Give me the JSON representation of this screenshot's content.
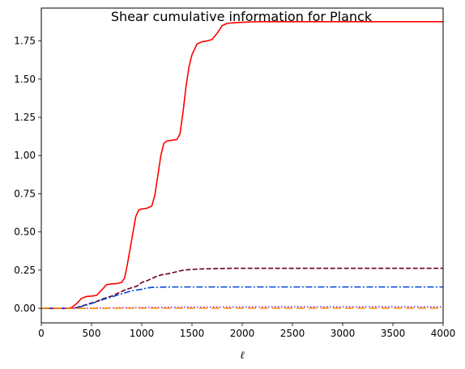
{
  "chart_data": {
    "type": "line",
    "title": "Shear cumulative information for Planck",
    "xlabel": "ℓ",
    "ylabel": "",
    "xlim": [
      0,
      4000
    ],
    "ylim": [
      -0.095,
      1.965
    ],
    "xticks": [
      0,
      500,
      1000,
      1500,
      2000,
      2500,
      3000,
      3500,
      4000
    ],
    "xtick_labels": [
      "0",
      "500",
      "1000",
      "1500",
      "2000",
      "2500",
      "3000",
      "3500",
      "4000"
    ],
    "yticks": [
      0.0,
      0.25,
      0.5,
      0.75,
      1.0,
      1.25,
      1.5,
      1.75
    ],
    "ytick_labels": [
      "0.00",
      "0.25",
      "0.50",
      "0.75",
      "1.00",
      "1.25",
      "1.50",
      "1.75"
    ],
    "grid": false,
    "legend": "none",
    "series": [
      {
        "color": "#ff0000",
        "style": "solid",
        "x": [
          0,
          250,
          300,
          350,
          400,
          450,
          500,
          550,
          600,
          650,
          700,
          750,
          800,
          830,
          860,
          900,
          940,
          970,
          1000,
          1050,
          1100,
          1130,
          1160,
          1190,
          1220,
          1250,
          1300,
          1350,
          1380,
          1410,
          1440,
          1470,
          1500,
          1550,
          1600,
          1650,
          1700,
          1750,
          1800,
          1850,
          1900,
          2000,
          2100,
          2200,
          2500,
          3000,
          3500,
          4000
        ],
        "y": [
          0.0,
          0.0,
          0.005,
          0.03,
          0.065,
          0.078,
          0.08,
          0.085,
          0.12,
          0.155,
          0.16,
          0.162,
          0.17,
          0.2,
          0.3,
          0.45,
          0.6,
          0.645,
          0.65,
          0.655,
          0.67,
          0.74,
          0.87,
          1.0,
          1.08,
          1.095,
          1.1,
          1.105,
          1.14,
          1.28,
          1.45,
          1.58,
          1.66,
          1.73,
          1.745,
          1.75,
          1.76,
          1.8,
          1.85,
          1.865,
          1.868,
          1.872,
          1.875,
          1.876,
          1.876,
          1.876,
          1.876,
          1.876
        ]
      },
      {
        "color": "#6b0020",
        "style": "dashed",
        "x": [
          0,
          300,
          350,
          400,
          450,
          500,
          550,
          600,
          650,
          700,
          750,
          800,
          850,
          900,
          950,
          1000,
          1050,
          1100,
          1150,
          1200,
          1250,
          1300,
          1350,
          1400,
          1450,
          1500,
          1600,
          1700,
          1800,
          1900,
          2000,
          2500,
          3000,
          3500,
          4000
        ],
        "y": [
          0.0,
          0.0,
          0.005,
          0.015,
          0.025,
          0.035,
          0.045,
          0.06,
          0.07,
          0.08,
          0.095,
          0.11,
          0.125,
          0.135,
          0.145,
          0.17,
          0.18,
          0.195,
          0.21,
          0.22,
          0.225,
          0.232,
          0.24,
          0.248,
          0.252,
          0.255,
          0.258,
          0.26,
          0.261,
          0.262,
          0.262,
          0.262,
          0.262,
          0.262,
          0.262
        ]
      },
      {
        "color": "#0047d6",
        "style": "dashdot",
        "x": [
          0,
          300,
          350,
          400,
          450,
          500,
          550,
          600,
          650,
          700,
          750,
          800,
          850,
          900,
          950,
          1000,
          1050,
          1100,
          1150,
          1200,
          1300,
          1500,
          2000,
          2500,
          3000,
          3500,
          4000
        ],
        "y": [
          0.0,
          0.0,
          0.004,
          0.012,
          0.022,
          0.032,
          0.042,
          0.055,
          0.065,
          0.075,
          0.085,
          0.095,
          0.105,
          0.115,
          0.12,
          0.125,
          0.133,
          0.137,
          0.138,
          0.139,
          0.14,
          0.14,
          0.14,
          0.14,
          0.14,
          0.14,
          0.14
        ]
      },
      {
        "color": "#8a2be2",
        "style": "dotted",
        "x": [
          0,
          300,
          500,
          800,
          1000,
          1500,
          2000,
          2500,
          3000,
          3500,
          4000
        ],
        "y": [
          0.0,
          0.0,
          0.002,
          0.004,
          0.006,
          0.008,
          0.009,
          0.01,
          0.01,
          0.01,
          0.01
        ]
      },
      {
        "color": "#ff8c00",
        "style": "longdash",
        "x": [
          0,
          300,
          500,
          800,
          1000,
          1500,
          2000,
          2500,
          3000,
          3500,
          4000
        ],
        "y": [
          0.0,
          0.0,
          0.0,
          0.001,
          0.001,
          0.001,
          0.001,
          0.001,
          0.001,
          0.001,
          0.001
        ]
      }
    ]
  }
}
